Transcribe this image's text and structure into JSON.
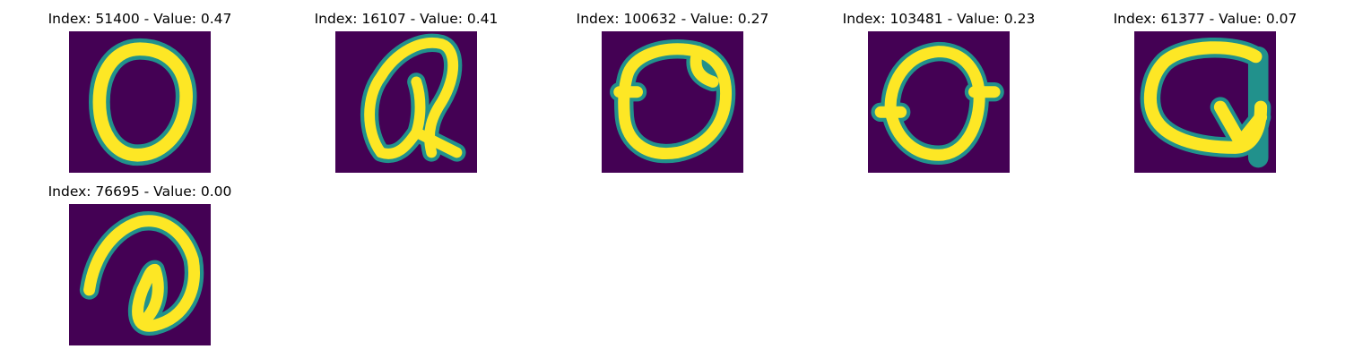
{
  "panels": [
    {
      "title": "Index: 51400 - Value: 0.47",
      "icon": "handwritten-zero-image"
    },
    {
      "title": "Index: 16107 - Value: 0.41",
      "icon": "handwritten-zero-image"
    },
    {
      "title": "Index: 100632 - Value: 0.27",
      "icon": "handwritten-zero-image"
    },
    {
      "title": "Index: 103481 - Value: 0.23",
      "icon": "handwritten-zero-image"
    },
    {
      "title": "Index: 61377 - Value: 0.07",
      "icon": "handwritten-q-image"
    },
    {
      "title": "Index: 76695 - Value: 0.00",
      "icon": "handwritten-curl-image"
    }
  ],
  "colors": {
    "background": "#440154",
    "mid": "#21918c",
    "foreground": "#fde725"
  }
}
